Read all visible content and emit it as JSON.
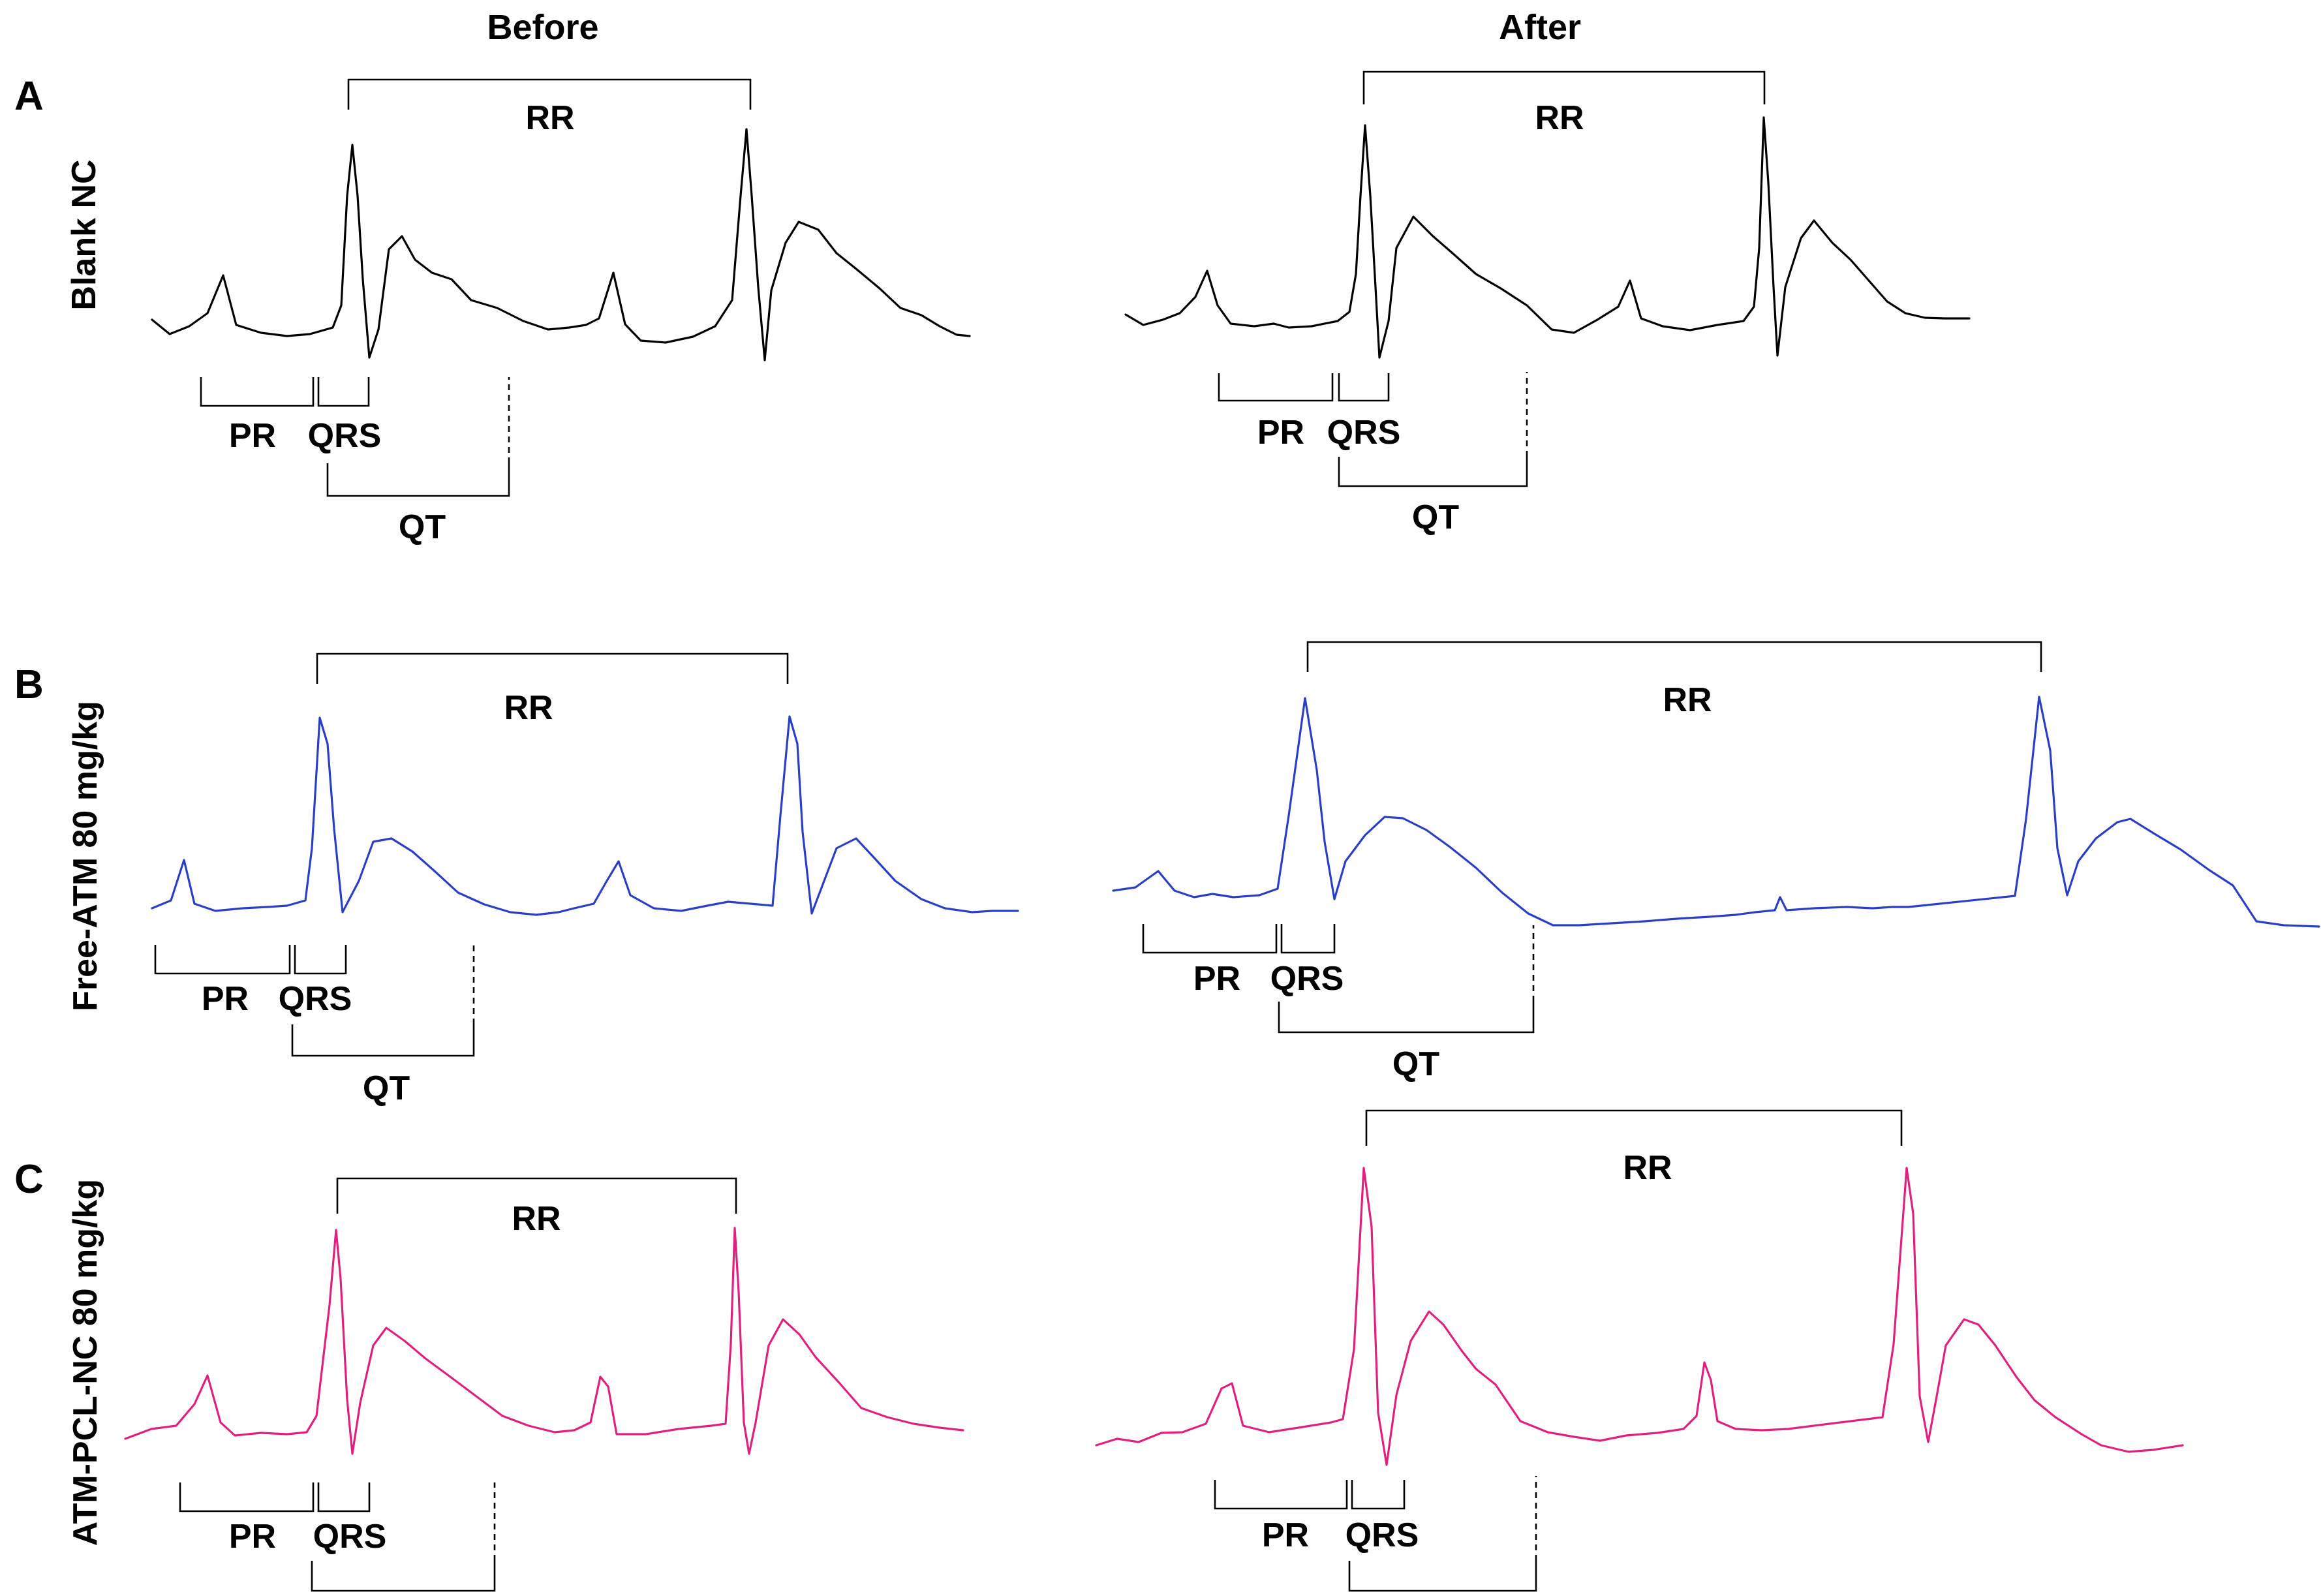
{
  "columns": {
    "before": "Before",
    "after": "After"
  },
  "trace_colors": {
    "A": "#000000",
    "B": "#2b3fc4",
    "C": "#e0207e"
  },
  "panels": [
    {
      "letter": "A",
      "row_label": "Blank NC",
      "before": {
        "rr": "RR",
        "pr": "PR",
        "qrs": "QRS",
        "qt": "QT"
      },
      "after": {
        "rr": "RR",
        "pr": "PR",
        "qrs": "QRS",
        "qt": "QT"
      }
    },
    {
      "letter": "B",
      "row_label": "Free-ATM 80 mg/kg",
      "before": {
        "rr": "RR",
        "pr": "PR",
        "qrs": "QRS",
        "qt": "QT"
      },
      "after": {
        "rr": "RR",
        "pr": "PR",
        "qrs": "QRS",
        "qt": "QT"
      }
    },
    {
      "letter": "C",
      "row_label": "ATM-PCL-NC 80 mg/kg",
      "before": {
        "rr": "RR",
        "pr": "PR",
        "qrs": "QRS"
      },
      "after": {
        "rr": "RR",
        "pr": "PR",
        "qrs": "QRS"
      }
    }
  ]
}
